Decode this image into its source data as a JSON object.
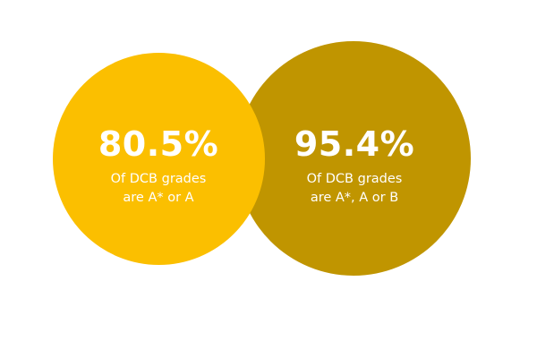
{
  "colors": {
    "left_circle": "#fbbf00",
    "right_circle": "#c09500",
    "text": "#ffffff",
    "background": "#ffffff"
  },
  "stats": [
    {
      "value": "80.5%",
      "caption_line1": "Of DCB grades",
      "caption_line2": "are A* or A"
    },
    {
      "value": "95.4%",
      "caption_line1": "Of DCB grades",
      "caption_line2": "are A*, A or B"
    }
  ]
}
